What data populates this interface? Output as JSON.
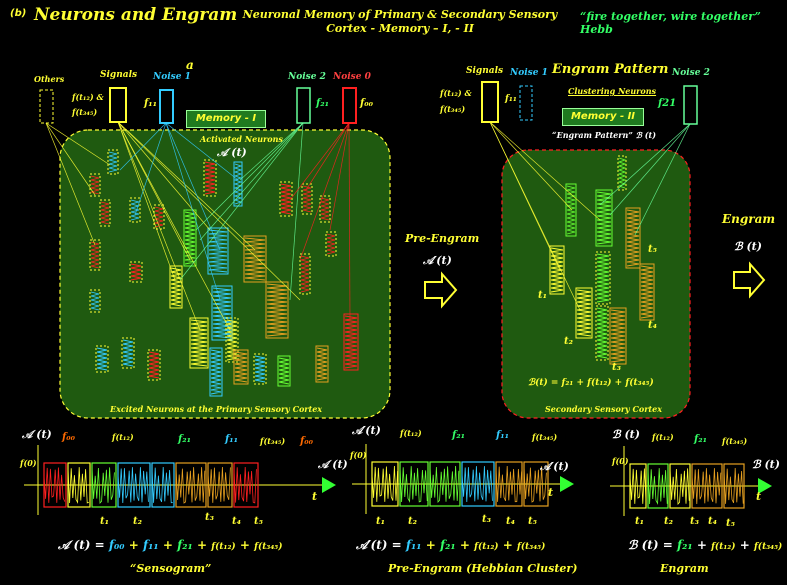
{
  "panel_tag": "(b)",
  "title": "Neurons and Engram",
  "subtitle_line1": "Neuronal Memory of Primary & Secondary  Sensory",
  "subtitle_line2": "Cortex - Memory – I,  - II",
  "hebb_quote": "“fire together, wire together”  Hebb",
  "left_region": {
    "labels": {
      "others": "Others",
      "signals": "Signals",
      "signals_f1": "f(t₁₂) &",
      "signals_f2": "f(t₃₄₅)",
      "noise1": "Noise 1",
      "noise1_f": "f₁₁",
      "noise2": "Noise 2",
      "noise2_f": "f₂₁",
      "noise0": "Noise 0",
      "noise0_f": "f₀₀",
      "a_marker": "a",
      "memory_box": "Memory - I",
      "activated": "Activated Neurons",
      "a_of_t": "𝒜 (t)",
      "caption": "Excited Neurons at the Primary Sensory Cortex"
    }
  },
  "middle": {
    "pre_engram": "Pre-Engram",
    "a_prime": "𝒜′(t)",
    "engram": "Engram",
    "b_of_t": "ℬ (t)"
  },
  "right_region": {
    "labels": {
      "signals": "Signals",
      "signals_f1": "f(t₁₂) &",
      "signals_f2": "f(t₃₄₅)",
      "noise1": "Noise  1",
      "noise1_f": "f₁₁",
      "engram_pattern": "Engram Pattern",
      "clustering": "Clustering Neurons",
      "noise2": "Noise  2",
      "noise2_f": "f21",
      "memory_box": "Memory - II",
      "engram_pattern_q": "“Engram Pattern” ℬ (t)",
      "t1": "t₁",
      "t2": "t₂",
      "t3": "t₃",
      "t4": "t₄",
      "t5": "t₅",
      "formula": "ℬ(t) = f₂₁ + f(t₁₂) + f(t₃₄₅)",
      "caption": "Secondary Sensory Cortex"
    }
  },
  "bottom": {
    "signal1": {
      "y_label": "𝒜 (t)",
      "f0": "f(0)",
      "tags": [
        "f₀₀",
        "f(t₁₂)",
        "f₂₁",
        "f₁₁",
        "f(t₃₄₅)",
        "f₀₀"
      ],
      "out_label": "𝒜 (t)",
      "t_ticks": [
        "t₁",
        "t₂",
        "t₃",
        "t₄",
        "t₅"
      ],
      "t_axis": "t",
      "formula_lhs": "𝒜 (t) =",
      "formula_terms": [
        "f₀₀",
        "+",
        "f₁₁",
        "+",
        "f₂₁",
        "+",
        "f(t₁₂)",
        "+",
        "f(t₃₄₅)"
      ],
      "caption": "“Sensogram”"
    },
    "signal2": {
      "y_label": "𝒜′(t)",
      "f0": "f(0)",
      "tags": [
        "f(t₁₂)",
        "f₂₁",
        "f₁₁",
        "f(t₃₄₅)"
      ],
      "out_label": "𝒜′(t)",
      "t_ticks": [
        "t₁",
        "t₂",
        "t₃",
        "t₄",
        "t₅"
      ],
      "t_axis": "t",
      "formula_lhs": "𝒜′(t) =",
      "formula_terms": [
        "f₁₁",
        "+",
        "f₂₁",
        "+",
        "f(t₁₂)",
        "+",
        "f(t₃₄₅)"
      ],
      "caption": "Pre-Engram (Hebbian Cluster)"
    },
    "signal3": {
      "y_label": "ℬ (t)",
      "f0": "f(0)",
      "tags": [
        "f(t₁₂)",
        "f₂₁",
        "f(t₃₄₅)"
      ],
      "out_label": "ℬ (t)",
      "t_ticks": [
        "t₁",
        "t₂",
        "t₃",
        "t₄",
        "t₅"
      ],
      "t_axis": "t",
      "formula_lhs": "ℬ (t) =",
      "formula_terms": [
        "f₂₁",
        "+",
        "f(t₁₂)",
        "+",
        "f(t₃₄₅)"
      ],
      "caption": "Engram"
    }
  },
  "colors": {
    "cortex_fill": "#1f5a10",
    "yellow": "#ffff33",
    "green_text": "#33ff66",
    "red": "#ff2020",
    "cyan": "#33ccff",
    "orange": "#e6a020",
    "lime": "#66ff33"
  }
}
